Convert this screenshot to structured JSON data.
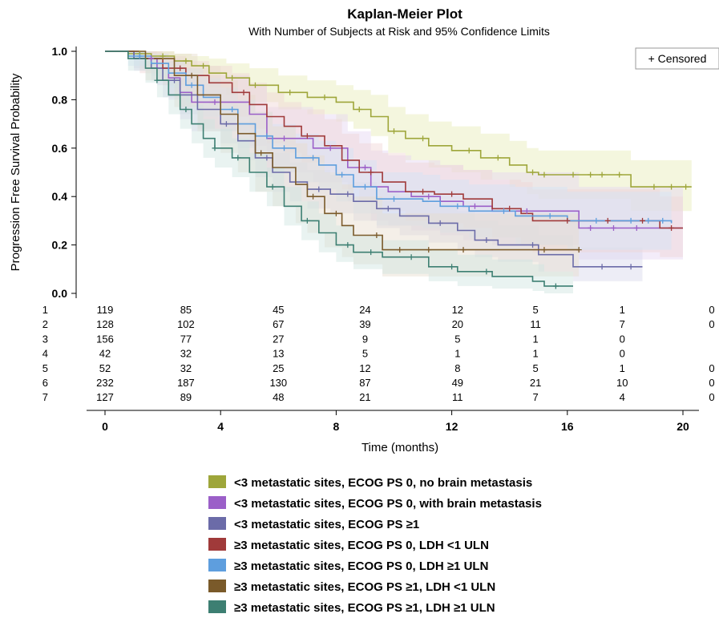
{
  "chart_data": {
    "type": "line",
    "title": "Kaplan-Meier Plot",
    "subtitle": "With Number of Subjects at Risk and 95% Confidence Limits",
    "xlabel": "Time (months)",
    "ylabel": "Progression Free Survival Probability",
    "xlim": [
      0,
      20.5
    ],
    "ylim": [
      0,
      1
    ],
    "x_ticks": [
      "0",
      "4",
      "8",
      "12",
      "16",
      "20"
    ],
    "y_ticks": [
      "0.0",
      "0.2",
      "0.4",
      "0.6",
      "0.8",
      "1.0"
    ],
    "grid": false,
    "censor_legend": "+ Censored",
    "series": [
      {
        "name": "<3 metastatic sites, ECOG PS 0, no brain metastasis",
        "color": "#9ea63a",
        "band": "#e6eab5",
        "points": [
          [
            0,
            1.0
          ],
          [
            0.8,
            0.99
          ],
          [
            1.6,
            0.98
          ],
          [
            2.4,
            0.96
          ],
          [
            3.0,
            0.94
          ],
          [
            3.6,
            0.91
          ],
          [
            4.2,
            0.89
          ],
          [
            5.0,
            0.86
          ],
          [
            6.0,
            0.83
          ],
          [
            7.0,
            0.81
          ],
          [
            8.0,
            0.79
          ],
          [
            8.6,
            0.76
          ],
          [
            9.2,
            0.73
          ],
          [
            9.8,
            0.67
          ],
          [
            10.4,
            0.64
          ],
          [
            11.2,
            0.61
          ],
          [
            12.0,
            0.59
          ],
          [
            13.0,
            0.56
          ],
          [
            14.0,
            0.53
          ],
          [
            14.6,
            0.5
          ],
          [
            15.0,
            0.49
          ],
          [
            17.5,
            0.49
          ],
          [
            18.2,
            0.44
          ],
          [
            20.3,
            0.44
          ]
        ],
        "ci_upper": [
          1.0,
          1.0,
          1.0,
          0.99,
          0.98,
          0.97,
          0.95,
          0.93,
          0.9,
          0.88,
          0.86,
          0.84,
          0.82,
          0.77,
          0.74,
          0.71,
          0.69,
          0.66,
          0.63,
          0.6,
          0.59,
          0.59,
          0.55,
          0.55
        ],
        "ci_lower": [
          1.0,
          0.97,
          0.95,
          0.92,
          0.89,
          0.85,
          0.82,
          0.79,
          0.76,
          0.74,
          0.71,
          0.68,
          0.65,
          0.58,
          0.55,
          0.52,
          0.5,
          0.47,
          0.44,
          0.41,
          0.39,
          0.39,
          0.34,
          0.34
        ],
        "censored_x": [
          1.2,
          2.0,
          2.8,
          3.4,
          4.4,
          5.2,
          6.4,
          7.6,
          8.8,
          10.0,
          11.0,
          12.6,
          13.6,
          14.8,
          15.2,
          16.2,
          16.8,
          17.2,
          17.8,
          19.0,
          19.6,
          20.1
        ]
      },
      {
        "name": "<3 metastatic sites, ECOG PS 0, with brain metastasis",
        "color": "#9b5fc8",
        "band": "#e4d4f1",
        "points": [
          [
            0,
            1.0
          ],
          [
            1.0,
            0.97
          ],
          [
            1.8,
            0.93
          ],
          [
            2.2,
            0.89
          ],
          [
            2.6,
            0.83
          ],
          [
            3.0,
            0.79
          ],
          [
            4.5,
            0.79
          ],
          [
            5.0,
            0.74
          ],
          [
            5.6,
            0.64
          ],
          [
            6.6,
            0.64
          ],
          [
            7.2,
            0.6
          ],
          [
            8.0,
            0.6
          ],
          [
            8.4,
            0.52
          ],
          [
            9.2,
            0.44
          ],
          [
            9.8,
            0.42
          ],
          [
            10.6,
            0.4
          ],
          [
            11.6,
            0.38
          ],
          [
            12.4,
            0.36
          ],
          [
            13.4,
            0.34
          ],
          [
            16.0,
            0.34
          ],
          [
            16.4,
            0.27
          ],
          [
            20.0,
            0.27
          ]
        ],
        "ci_upper": [
          1.0,
          1.0,
          0.99,
          0.97,
          0.93,
          0.9,
          0.9,
          0.86,
          0.77,
          0.77,
          0.74,
          0.74,
          0.67,
          0.59,
          0.57,
          0.55,
          0.53,
          0.51,
          0.5,
          0.5,
          0.44,
          0.44
        ],
        "ci_lower": [
          1.0,
          0.92,
          0.86,
          0.8,
          0.72,
          0.67,
          0.67,
          0.61,
          0.5,
          0.5,
          0.46,
          0.46,
          0.38,
          0.3,
          0.28,
          0.26,
          0.24,
          0.22,
          0.2,
          0.2,
          0.14,
          0.14
        ],
        "censored_x": [
          1.6,
          3.8,
          6.2,
          7.8,
          9.0,
          11.2,
          12.8,
          14.6,
          16.8,
          17.6,
          18.4
        ]
      },
      {
        "name": "<3 metastatic sites, ECOG PS ≥1",
        "color": "#6b6ba8",
        "band": "#d6d6ea",
        "points": [
          [
            0,
            1.0
          ],
          [
            1.0,
            0.97
          ],
          [
            1.6,
            0.93
          ],
          [
            2.0,
            0.88
          ],
          [
            2.6,
            0.82
          ],
          [
            3.2,
            0.76
          ],
          [
            4.0,
            0.7
          ],
          [
            4.6,
            0.63
          ],
          [
            5.2,
            0.56
          ],
          [
            5.8,
            0.5
          ],
          [
            6.4,
            0.46
          ],
          [
            7.0,
            0.43
          ],
          [
            7.8,
            0.41
          ],
          [
            8.6,
            0.38
          ],
          [
            9.4,
            0.35
          ],
          [
            10.2,
            0.32
          ],
          [
            11.2,
            0.29
          ],
          [
            12.2,
            0.26
          ],
          [
            12.8,
            0.22
          ],
          [
            13.6,
            0.2
          ],
          [
            15.0,
            0.16
          ],
          [
            15.8,
            0.16
          ],
          [
            16.2,
            0.11
          ],
          [
            18.6,
            0.11
          ]
        ],
        "ci_upper": [
          1.0,
          0.99,
          0.97,
          0.94,
          0.89,
          0.84,
          0.78,
          0.71,
          0.64,
          0.58,
          0.54,
          0.51,
          0.49,
          0.46,
          0.43,
          0.4,
          0.37,
          0.34,
          0.3,
          0.28,
          0.24,
          0.24,
          0.19,
          0.19
        ],
        "ci_lower": [
          1.0,
          0.93,
          0.88,
          0.81,
          0.74,
          0.68,
          0.62,
          0.55,
          0.48,
          0.42,
          0.38,
          0.35,
          0.33,
          0.3,
          0.27,
          0.24,
          0.21,
          0.18,
          0.15,
          0.13,
          0.09,
          0.09,
          0.05,
          0.05
        ],
        "censored_x": [
          2.4,
          4.2,
          5.6,
          7.4,
          8.4,
          9.8,
          11.6,
          13.2,
          14.8,
          17.2,
          18.2
        ]
      },
      {
        "name": "≥3 metastatic sites, ECOG PS 0, LDH <1 ULN",
        "color": "#a03a3a",
        "band": "#f0d4d4",
        "points": [
          [
            0,
            1.0
          ],
          [
            1.2,
            0.97
          ],
          [
            2.0,
            0.93
          ],
          [
            2.8,
            0.9
          ],
          [
            3.6,
            0.87
          ],
          [
            4.4,
            0.83
          ],
          [
            5.0,
            0.78
          ],
          [
            5.6,
            0.73
          ],
          [
            6.2,
            0.69
          ],
          [
            6.8,
            0.65
          ],
          [
            7.6,
            0.61
          ],
          [
            8.2,
            0.55
          ],
          [
            8.8,
            0.5
          ],
          [
            9.6,
            0.46
          ],
          [
            10.4,
            0.42
          ],
          [
            11.4,
            0.41
          ],
          [
            12.4,
            0.39
          ],
          [
            13.4,
            0.35
          ],
          [
            14.4,
            0.33
          ],
          [
            14.8,
            0.3
          ],
          [
            19.0,
            0.3
          ],
          [
            19.2,
            0.27
          ],
          [
            20.0,
            0.27
          ]
        ],
        "ci_upper": [
          1.0,
          1.0,
          0.98,
          0.96,
          0.94,
          0.91,
          0.87,
          0.83,
          0.79,
          0.76,
          0.72,
          0.66,
          0.62,
          0.58,
          0.54,
          0.53,
          0.51,
          0.47,
          0.46,
          0.43,
          0.43,
          0.4,
          0.4
        ],
        "ci_lower": [
          1.0,
          0.91,
          0.86,
          0.82,
          0.78,
          0.73,
          0.68,
          0.62,
          0.58,
          0.54,
          0.5,
          0.43,
          0.38,
          0.34,
          0.3,
          0.29,
          0.27,
          0.23,
          0.2,
          0.17,
          0.17,
          0.15,
          0.15
        ],
        "censored_x": [
          2.6,
          4.8,
          7.0,
          9.2,
          11.0,
          12.0,
          14.0,
          16.0,
          17.4,
          18.6,
          19.6
        ]
      },
      {
        "name": "≥3 metastatic sites, ECOG PS 0, LDH ≥1 ULN",
        "color": "#5e9ede",
        "band": "#d2e4f6",
        "points": [
          [
            0,
            1.0
          ],
          [
            0.8,
            0.98
          ],
          [
            1.6,
            0.95
          ],
          [
            2.2,
            0.91
          ],
          [
            2.8,
            0.86
          ],
          [
            3.4,
            0.81
          ],
          [
            4.0,
            0.76
          ],
          [
            4.6,
            0.7
          ],
          [
            5.2,
            0.65
          ],
          [
            5.8,
            0.6
          ],
          [
            6.6,
            0.56
          ],
          [
            7.4,
            0.53
          ],
          [
            8.0,
            0.49
          ],
          [
            8.6,
            0.44
          ],
          [
            9.4,
            0.39
          ],
          [
            11.0,
            0.38
          ],
          [
            11.6,
            0.36
          ],
          [
            12.6,
            0.34
          ],
          [
            14.2,
            0.32
          ],
          [
            16.0,
            0.3
          ],
          [
            16.6,
            0.3
          ],
          [
            19.6,
            0.29
          ]
        ],
        "ci_upper": [
          1.0,
          1.0,
          0.99,
          0.96,
          0.93,
          0.89,
          0.85,
          0.8,
          0.75,
          0.7,
          0.66,
          0.63,
          0.6,
          0.55,
          0.5,
          0.49,
          0.47,
          0.45,
          0.44,
          0.42,
          0.42,
          0.41
        ],
        "ci_lower": [
          1.0,
          0.94,
          0.9,
          0.85,
          0.79,
          0.73,
          0.67,
          0.6,
          0.55,
          0.5,
          0.46,
          0.43,
          0.38,
          0.33,
          0.28,
          0.27,
          0.25,
          0.23,
          0.2,
          0.18,
          0.18,
          0.17
        ],
        "censored_x": [
          1.2,
          3.0,
          4.4,
          5.6,
          6.2,
          7.2,
          8.2,
          9.0,
          10.0,
          12.2,
          13.8,
          15.4,
          17.0,
          18.2,
          18.8,
          19.3
        ]
      },
      {
        "name": "≥3 metastatic sites, ECOG PS ≥1, LDH <1 ULN",
        "color": "#7a5a2a",
        "band": "#e6dccd",
        "points": [
          [
            0,
            1.0
          ],
          [
            1.4,
            0.97
          ],
          [
            2.4,
            0.9
          ],
          [
            3.2,
            0.82
          ],
          [
            4.0,
            0.74
          ],
          [
            4.6,
            0.66
          ],
          [
            5.2,
            0.58
          ],
          [
            5.8,
            0.52
          ],
          [
            6.6,
            0.45
          ],
          [
            7.0,
            0.4
          ],
          [
            7.6,
            0.33
          ],
          [
            8.2,
            0.28
          ],
          [
            8.6,
            0.24
          ],
          [
            9.2,
            0.24
          ],
          [
            9.6,
            0.18
          ],
          [
            13.0,
            0.18
          ],
          [
            16.4,
            0.18
          ]
        ],
        "ci_upper": [
          1.0,
          1.0,
          0.99,
          0.94,
          0.88,
          0.82,
          0.75,
          0.69,
          0.62,
          0.57,
          0.5,
          0.45,
          0.4,
          0.4,
          0.33,
          0.33,
          0.33
        ],
        "ci_lower": [
          1.0,
          0.88,
          0.77,
          0.67,
          0.58,
          0.5,
          0.42,
          0.36,
          0.29,
          0.25,
          0.19,
          0.15,
          0.12,
          0.12,
          0.07,
          0.07,
          0.07
        ],
        "censored_x": [
          3.0,
          5.4,
          7.2,
          8.0,
          9.4,
          10.2,
          11.2,
          12.4,
          15.2,
          16.4
        ]
      },
      {
        "name": "≥3 metastatic sites, ECOG PS ≥1, LDH ≥1 ULN",
        "color": "#3d7f72",
        "band": "#cfe5e0",
        "points": [
          [
            0,
            1.0
          ],
          [
            0.8,
            0.97
          ],
          [
            1.4,
            0.93
          ],
          [
            1.8,
            0.88
          ],
          [
            2.2,
            0.82
          ],
          [
            2.6,
            0.76
          ],
          [
            3.0,
            0.7
          ],
          [
            3.4,
            0.64
          ],
          [
            3.8,
            0.6
          ],
          [
            4.4,
            0.56
          ],
          [
            5.0,
            0.5
          ],
          [
            5.6,
            0.44
          ],
          [
            6.2,
            0.36
          ],
          [
            6.8,
            0.3
          ],
          [
            7.4,
            0.25
          ],
          [
            8.0,
            0.2
          ],
          [
            8.6,
            0.17
          ],
          [
            9.6,
            0.15
          ],
          [
            11.2,
            0.11
          ],
          [
            12.2,
            0.09
          ],
          [
            13.4,
            0.07
          ],
          [
            14.8,
            0.05
          ],
          [
            15.2,
            0.03
          ],
          [
            16.2,
            0.03
          ]
        ],
        "ci_upper": [
          1.0,
          1.0,
          0.98,
          0.94,
          0.89,
          0.84,
          0.78,
          0.72,
          0.68,
          0.64,
          0.58,
          0.52,
          0.44,
          0.38,
          0.33,
          0.28,
          0.24,
          0.22,
          0.18,
          0.16,
          0.14,
          0.12,
          0.09,
          0.09
        ],
        "ci_lower": [
          1.0,
          0.92,
          0.87,
          0.81,
          0.74,
          0.68,
          0.62,
          0.56,
          0.52,
          0.48,
          0.42,
          0.36,
          0.28,
          0.22,
          0.17,
          0.13,
          0.1,
          0.08,
          0.05,
          0.03,
          0.02,
          0.01,
          0.0,
          0.0
        ],
        "censored_x": [
          1.8,
          2.8,
          3.8,
          4.6,
          5.8,
          7.0,
          8.4,
          9.2,
          10.6,
          12.0,
          13.2,
          15.6
        ]
      }
    ],
    "at_risk": {
      "times": [
        0,
        2.8,
        6,
        9,
        12.2,
        14.9,
        17.9,
        21
      ],
      "rows": [
        {
          "label": "1",
          "counts": [
            "119",
            "85",
            "45",
            "24",
            "12",
            "5",
            "1",
            "0"
          ]
        },
        {
          "label": "2",
          "counts": [
            "128",
            "102",
            "67",
            "39",
            "20",
            "11",
            "7",
            "0"
          ]
        },
        {
          "label": "3",
          "counts": [
            "156",
            "77",
            "27",
            "9",
            "5",
            "1",
            "0",
            ""
          ]
        },
        {
          "label": "4",
          "counts": [
            "42",
            "32",
            "13",
            "5",
            "1",
            "1",
            "0",
            ""
          ]
        },
        {
          "label": "5",
          "counts": [
            "52",
            "32",
            "25",
            "12",
            "8",
            "5",
            "1",
            "0"
          ]
        },
        {
          "label": "6",
          "counts": [
            "232",
            "187",
            "130",
            "87",
            "49",
            "21",
            "10",
            "0"
          ]
        },
        {
          "label": "7",
          "counts": [
            "127",
            "89",
            "48",
            "21",
            "11",
            "7",
            "4",
            "0"
          ]
        }
      ]
    }
  }
}
